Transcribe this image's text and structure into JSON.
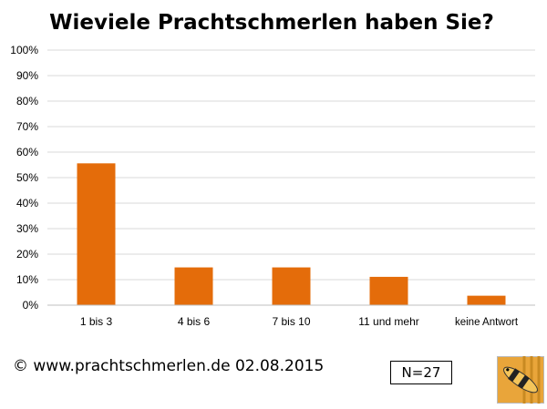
{
  "chart_data": {
    "type": "bar",
    "title": "Wieviele Prachtschmerlen haben Sie?",
    "categories": [
      "1 bis 3",
      "4 bis 6",
      "7 bis 10",
      "11 und mehr",
      "keine Antwort"
    ],
    "values": [
      55.6,
      14.8,
      14.8,
      11.1,
      3.7
    ],
    "y_ticks": [
      "0%",
      "10%",
      "20%",
      "30%",
      "40%",
      "50%",
      "60%",
      "70%",
      "80%",
      "90%",
      "100%"
    ],
    "ylim": [
      0,
      100
    ],
    "grid": true,
    "bar_color": "#E46C0A",
    "grid_color": "#D9D9D9"
  },
  "footer": {
    "copyright": "© www.prachtschmerlen.de 02.08.2015",
    "sample_size": "N=27"
  },
  "logo": {
    "icon": "loach-fish-icon"
  }
}
